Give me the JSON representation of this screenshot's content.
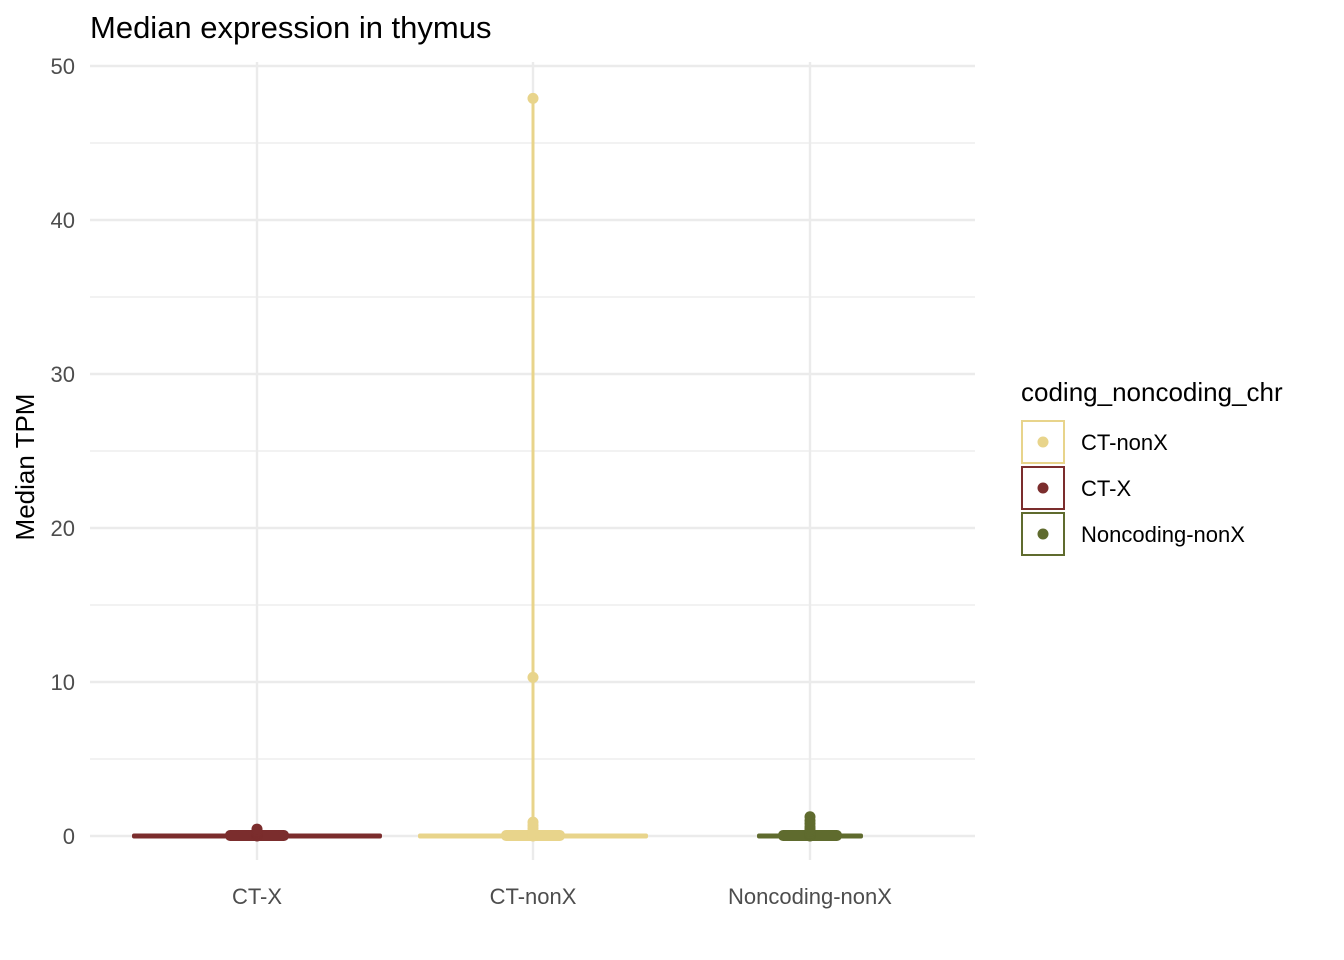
{
  "chart_data": {
    "type": "violin",
    "title": "Median expression in thymus",
    "xlabel": "",
    "ylabel": "Median TPM",
    "ylim": [
      0,
      50
    ],
    "y_ticks": [
      0,
      10,
      20,
      30,
      40,
      50
    ],
    "categories": [
      "CT-X",
      "CT-nonX",
      "Noncoding-nonX"
    ],
    "grid": true,
    "legend": {
      "title": "coding_noncoding_chr",
      "position": "right",
      "entries": [
        {
          "label": "CT-nonX",
          "color": "#E8D48B"
        },
        {
          "label": "CT-X",
          "color": "#7B2D2D"
        },
        {
          "label": "Noncoding-nonX",
          "color": "#5F6B2E"
        }
      ]
    },
    "series": [
      {
        "category": "CT-X",
        "color": "#7B2D2D",
        "max": 0.45,
        "points": [
          0,
          0.02,
          0.05,
          0.08,
          0.1,
          0.12,
          0.15,
          0.18,
          0.2,
          0.25,
          0.3,
          0.45
        ]
      },
      {
        "category": "CT-nonX",
        "color": "#E8D48B",
        "max": 47.9,
        "points": [
          0,
          0.02,
          0.05,
          0.1,
          0.15,
          0.2,
          0.3,
          0.5,
          0.7,
          0.9,
          10.3,
          47.9
        ]
      },
      {
        "category": "Noncoding-nonX",
        "color": "#5F6B2E",
        "max": 1.25,
        "points": [
          0,
          0.02,
          0.05,
          0.1,
          0.15,
          0.2,
          0.3,
          0.45,
          0.6,
          0.8,
          1.0,
          1.25
        ]
      }
    ]
  }
}
